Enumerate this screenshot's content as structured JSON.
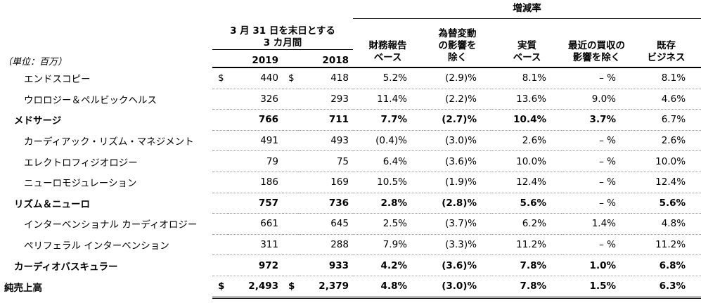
{
  "header": {
    "change_rate": "増減率",
    "period": [
      "3 月 31 日を末日とする",
      "3 カ月間"
    ],
    "unit": "（単位：百万）",
    "years": [
      "2019",
      "2018"
    ],
    "columns": [
      [
        "財務報告",
        "ベース"
      ],
      [
        "為替変動",
        "の影響を",
        "除く"
      ],
      [
        "実質",
        "ベース"
      ],
      [
        "最近の買収の",
        "影響を除く"
      ],
      [
        "既存",
        "ビジネス"
      ]
    ]
  },
  "table": {
    "rows": [
      [
        "エンドスコピー",
        "$",
        "440",
        "$",
        "418",
        "5.2%",
        "(2.9)%",
        "8.1%",
        "– %",
        "8.1%"
      ],
      [
        "ウロロジー＆ペルビックヘルス",
        null,
        "326",
        null,
        "293",
        "11.4%",
        "(2.2)%",
        "13.6%",
        "9.0%",
        "4.6%"
      ],
      [
        "メドサージ",
        null,
        "766",
        null,
        "711",
        "7.7%",
        "(2.7)%",
        "10.4%",
        "3.7%",
        "6.7%"
      ],
      [
        "カーディアック・リズム・マネジメント",
        null,
        "491",
        null,
        "493",
        "(0.4)%",
        "(3.0)%",
        "2.6%",
        "– %",
        "2.6%"
      ],
      [
        "エレクトロフィジオロジー",
        null,
        "79",
        null,
        "75",
        "6.4%",
        "(3.6)%",
        "10.0%",
        "– %",
        "10.0%"
      ],
      [
        "ニューロモジュレーション",
        null,
        "186",
        null,
        "169",
        "10.5%",
        "(1.9)%",
        "12.4%",
        "– %",
        "12.4%"
      ],
      [
        "リズム＆ニューロ",
        null,
        "757",
        null,
        "736",
        "2.8%",
        "(2.8)%",
        "5.6%",
        "– %",
        "5.6%"
      ],
      [
        "インターベンショナル カーディオロジー",
        null,
        "661",
        null,
        "645",
        "2.5%",
        "(3.7)%",
        "6.2%",
        "1.4%",
        "4.8%"
      ],
      [
        "ペリフェラル インターベンション",
        null,
        "311",
        null,
        "288",
        "7.9%",
        "(3.3)%",
        "11.2%",
        "– %",
        "11.2%"
      ],
      [
        "カーディオバスキュラー",
        null,
        "972",
        null,
        "933",
        "4.2%",
        "(3.6)%",
        "7.8%",
        "1.0%",
        "6.8%"
      ],
      [
        "純売上高",
        "$",
        "2,493",
        "$",
        "2,379",
        "4.8%",
        "(3.0)%",
        "7.8%",
        "1.5%",
        "6.3%"
      ]
    ]
  }
}
